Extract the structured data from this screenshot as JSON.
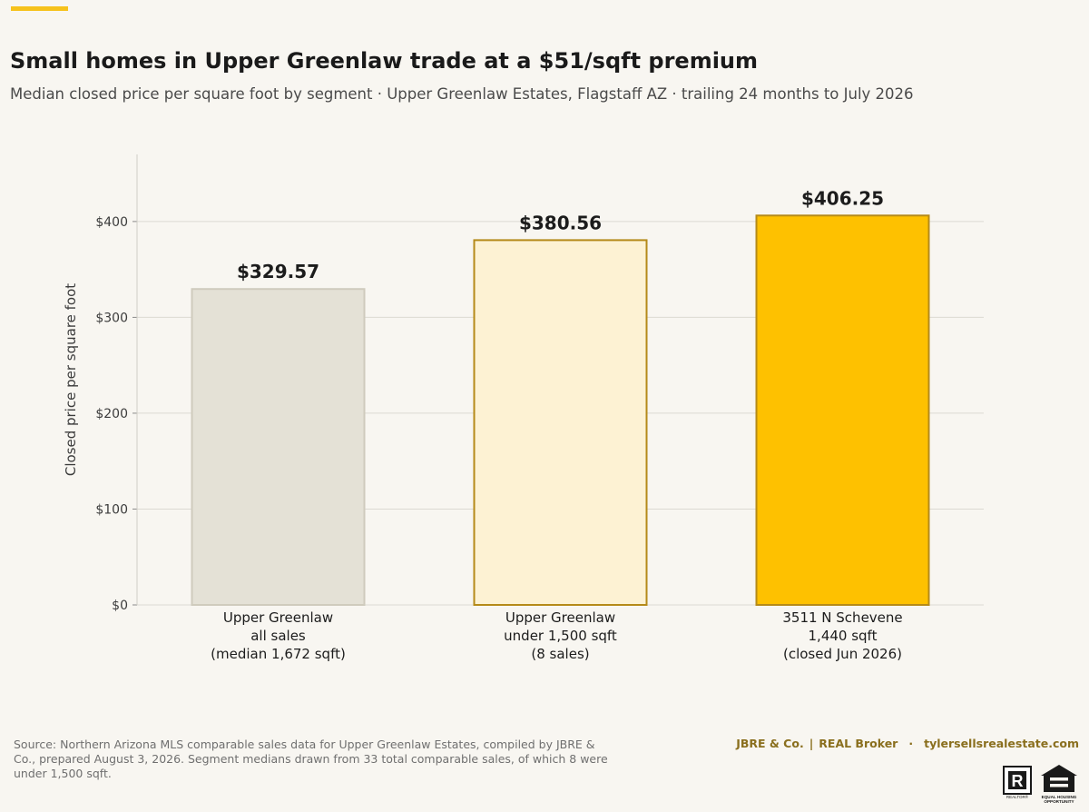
{
  "header": {
    "title": "Small homes in Upper Greenlaw trade at a $51/sqft premium",
    "subtitle": "Median closed price per square foot by segment · Upper Greenlaw Estates, Flagstaff AZ · trailing 24 months to July 2026"
  },
  "chart_data": {
    "type": "bar",
    "categories": [
      [
        "Upper Greenlaw",
        "all sales",
        "(median 1,672 sqft)"
      ],
      [
        "Upper Greenlaw",
        "under 1,500 sqft",
        "(8 sales)"
      ],
      [
        "3511 N Schevene",
        "1,440 sqft",
        "(closed Jun 2026)"
      ]
    ],
    "values": [
      329.57,
      380.56,
      406.25
    ],
    "value_labels": [
      "$329.57",
      "$380.56",
      "$406.25"
    ],
    "ylabel": "Closed price per square foot",
    "yticks": [
      0,
      100,
      200,
      300,
      400
    ],
    "ytick_labels": [
      "$0",
      "$100",
      "$200",
      "$300",
      "$400"
    ],
    "ylim": [
      0,
      470
    ],
    "grid": "horizontal",
    "bar_colors": [
      {
        "fill": "#e4e1d6",
        "stroke": "#cfcbbd"
      },
      {
        "fill": "#fdf2d3",
        "stroke": "#b58a19"
      },
      {
        "fill": "#fec100",
        "stroke": "#b58a19"
      }
    ]
  },
  "footer": {
    "source": "Source: Northern Arizona MLS comparable sales data for Upper Greenlaw Estates, compiled by JBRE & Co., prepared August 3, 2026. Segment medians drawn from 33 total comparable sales, of which 8 were under 1,500 sqft.",
    "brand_1": "JBRE & Co.",
    "brand_sep_1": "|",
    "brand_2": "REAL Broker",
    "brand_sep_2": "·",
    "brand_3": "tylersellsrealestate.com",
    "realtor_text": "REALTOR®",
    "eho_text_1": "EQUAL HOUSING",
    "eho_text_2": "OPPORTUNITY"
  },
  "colors": {
    "accent": "#f6c21c",
    "brand_text": "#8a6f1e",
    "background": "#f8f6f1"
  }
}
